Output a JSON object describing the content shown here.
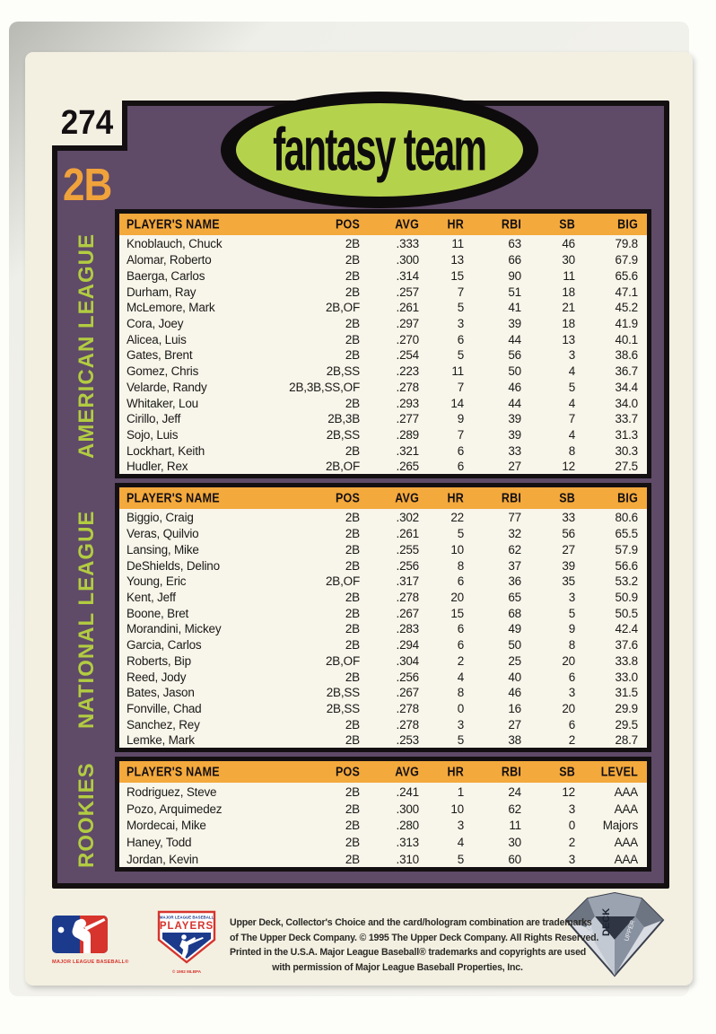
{
  "card": {
    "number": "274",
    "position": "2B",
    "logo_text": "fantasy team",
    "colors": {
      "panel_purple": "#5f4a68",
      "header_orange": "#f4a93c",
      "logo_green": "#b5d24d",
      "label_green": "#b2cc41",
      "position_orange": "#f0a23b",
      "card_cream": "#f3f0e2"
    }
  },
  "tables": [
    {
      "league_label": "AMERICAN LEAGUE",
      "headers": [
        "PLAYER'S NAME",
        "POS",
        "AVG",
        "HR",
        "RBI",
        "SB",
        "BIG"
      ],
      "col_keys": [
        "name",
        "pos",
        "avg",
        "hr",
        "rbi",
        "sb",
        "big"
      ],
      "rows": [
        {
          "name": "Knoblauch, Chuck",
          "pos": "2B",
          "avg": ".333",
          "hr": "11",
          "rbi": "63",
          "sb": "46",
          "big": "79.8"
        },
        {
          "name": "Alomar, Roberto",
          "pos": "2B",
          "avg": ".300",
          "hr": "13",
          "rbi": "66",
          "sb": "30",
          "big": "67.9"
        },
        {
          "name": "Baerga, Carlos",
          "pos": "2B",
          "avg": ".314",
          "hr": "15",
          "rbi": "90",
          "sb": "11",
          "big": "65.6"
        },
        {
          "name": "Durham, Ray",
          "pos": "2B",
          "avg": ".257",
          "hr": "7",
          "rbi": "51",
          "sb": "18",
          "big": "47.1"
        },
        {
          "name": "McLemore, Mark",
          "pos": "2B,OF",
          "avg": ".261",
          "hr": "5",
          "rbi": "41",
          "sb": "21",
          "big": "45.2"
        },
        {
          "name": "Cora, Joey",
          "pos": "2B",
          "avg": ".297",
          "hr": "3",
          "rbi": "39",
          "sb": "18",
          "big": "41.9"
        },
        {
          "name": "Alicea, Luis",
          "pos": "2B",
          "avg": ".270",
          "hr": "6",
          "rbi": "44",
          "sb": "13",
          "big": "40.1"
        },
        {
          "name": "Gates, Brent",
          "pos": "2B",
          "avg": ".254",
          "hr": "5",
          "rbi": "56",
          "sb": "3",
          "big": "38.6"
        },
        {
          "name": "Gomez, Chris",
          "pos": "2B,SS",
          "avg": ".223",
          "hr": "11",
          "rbi": "50",
          "sb": "4",
          "big": "36.7"
        },
        {
          "name": "Velarde, Randy",
          "pos": "2B,3B,SS,OF",
          "avg": ".278",
          "hr": "7",
          "rbi": "46",
          "sb": "5",
          "big": "34.4"
        },
        {
          "name": "Whitaker, Lou",
          "pos": "2B",
          "avg": ".293",
          "hr": "14",
          "rbi": "44",
          "sb": "4",
          "big": "34.0"
        },
        {
          "name": "Cirillo, Jeff",
          "pos": "2B,3B",
          "avg": ".277",
          "hr": "9",
          "rbi": "39",
          "sb": "7",
          "big": "33.7"
        },
        {
          "name": "Sojo, Luis",
          "pos": "2B,SS",
          "avg": ".289",
          "hr": "7",
          "rbi": "39",
          "sb": "4",
          "big": "31.3"
        },
        {
          "name": "Lockhart, Keith",
          "pos": "2B",
          "avg": ".321",
          "hr": "6",
          "rbi": "33",
          "sb": "8",
          "big": "30.3"
        },
        {
          "name": "Hudler, Rex",
          "pos": "2B,OF",
          "avg": ".265",
          "hr": "6",
          "rbi": "27",
          "sb": "12",
          "big": "27.5"
        }
      ]
    },
    {
      "league_label": "NATIONAL LEAGUE",
      "headers": [
        "PLAYER'S NAME",
        "POS",
        "AVG",
        "HR",
        "RBI",
        "SB",
        "BIG"
      ],
      "col_keys": [
        "name",
        "pos",
        "avg",
        "hr",
        "rbi",
        "sb",
        "big"
      ],
      "rows": [
        {
          "name": "Biggio, Craig",
          "pos": "2B",
          "avg": ".302",
          "hr": "22",
          "rbi": "77",
          "sb": "33",
          "big": "80.6"
        },
        {
          "name": "Veras, Quilvio",
          "pos": "2B",
          "avg": ".261",
          "hr": "5",
          "rbi": "32",
          "sb": "56",
          "big": "65.5"
        },
        {
          "name": "Lansing, Mike",
          "pos": "2B",
          "avg": ".255",
          "hr": "10",
          "rbi": "62",
          "sb": "27",
          "big": "57.9"
        },
        {
          "name": "DeShields, Delino",
          "pos": "2B",
          "avg": ".256",
          "hr": "8",
          "rbi": "37",
          "sb": "39",
          "big": "56.6"
        },
        {
          "name": "Young, Eric",
          "pos": "2B,OF",
          "avg": ".317",
          "hr": "6",
          "rbi": "36",
          "sb": "35",
          "big": "53.2"
        },
        {
          "name": "Kent, Jeff",
          "pos": "2B",
          "avg": ".278",
          "hr": "20",
          "rbi": "65",
          "sb": "3",
          "big": "50.9"
        },
        {
          "name": "Boone, Bret",
          "pos": "2B",
          "avg": ".267",
          "hr": "15",
          "rbi": "68",
          "sb": "5",
          "big": "50.5"
        },
        {
          "name": "Morandini, Mickey",
          "pos": "2B",
          "avg": ".283",
          "hr": "6",
          "rbi": "49",
          "sb": "9",
          "big": "42.4"
        },
        {
          "name": "Garcia, Carlos",
          "pos": "2B",
          "avg": ".294",
          "hr": "6",
          "rbi": "50",
          "sb": "8",
          "big": "37.6"
        },
        {
          "name": "Roberts, Bip",
          "pos": "2B,OF",
          "avg": ".304",
          "hr": "2",
          "rbi": "25",
          "sb": "20",
          "big": "33.8"
        },
        {
          "name": "Reed, Jody",
          "pos": "2B",
          "avg": ".256",
          "hr": "4",
          "rbi": "40",
          "sb": "6",
          "big": "33.0"
        },
        {
          "name": "Bates, Jason",
          "pos": "2B,SS",
          "avg": ".267",
          "hr": "8",
          "rbi": "46",
          "sb": "3",
          "big": "31.5"
        },
        {
          "name": "Fonville, Chad",
          "pos": "2B,SS",
          "avg": ".278",
          "hr": "0",
          "rbi": "16",
          "sb": "20",
          "big": "29.9"
        },
        {
          "name": "Sanchez, Rey",
          "pos": "2B",
          "avg": ".278",
          "hr": "3",
          "rbi": "27",
          "sb": "6",
          "big": "29.5"
        },
        {
          "name": "Lemke, Mark",
          "pos": "2B",
          "avg": ".253",
          "hr": "5",
          "rbi": "38",
          "sb": "2",
          "big": "28.7"
        }
      ]
    },
    {
      "league_label": "ROOKIES",
      "headers": [
        "PLAYER'S NAME",
        "POS",
        "AVG",
        "HR",
        "RBI",
        "SB",
        "LEVEL"
      ],
      "col_keys": [
        "name",
        "pos",
        "avg",
        "hr",
        "rbi",
        "sb",
        "level"
      ],
      "rows": [
        {
          "name": "Rodriguez, Steve",
          "pos": "2B",
          "avg": ".241",
          "hr": "1",
          "rbi": "24",
          "sb": "12",
          "level": "AAA"
        },
        {
          "name": "Pozo, Arquimedez",
          "pos": "2B",
          "avg": ".300",
          "hr": "10",
          "rbi": "62",
          "sb": "3",
          "level": "AAA"
        },
        {
          "name": "Mordecai, Mike",
          "pos": "2B",
          "avg": ".280",
          "hr": "3",
          "rbi": "11",
          "sb": "0",
          "level": "Majors"
        },
        {
          "name": "Haney, Todd",
          "pos": "2B",
          "avg": ".313",
          "hr": "4",
          "rbi": "30",
          "sb": "2",
          "level": "AAA"
        },
        {
          "name": "Jordan, Kevin",
          "pos": "2B",
          "avg": ".310",
          "hr": "5",
          "rbi": "60",
          "sb": "3",
          "level": "AAA"
        }
      ]
    }
  ],
  "footer": {
    "lines": [
      "Upper Deck, Collector's Choice and the card/hologram combination are trademarks",
      "of The Upper Deck Company. © 1995 The Upper Deck Company. All Rights Reserved.",
      "Printed in the U.S.A. Major League Baseball® trademarks and copyrights are used",
      "with permission of Major League Baseball Properties, Inc."
    ],
    "mlb_logo_caption": "MAJOR LEAGUE BASEBALL®",
    "mlbpa_logo_top": "MAJOR LEAGUE BASEBALL",
    "mlbpa_logo_main": "PLAYERS",
    "mlbpa_logo_caption": "© 1992 MLBPA",
    "hologram_words": [
      "UPPER",
      "DECK",
      "DECK"
    ]
  }
}
